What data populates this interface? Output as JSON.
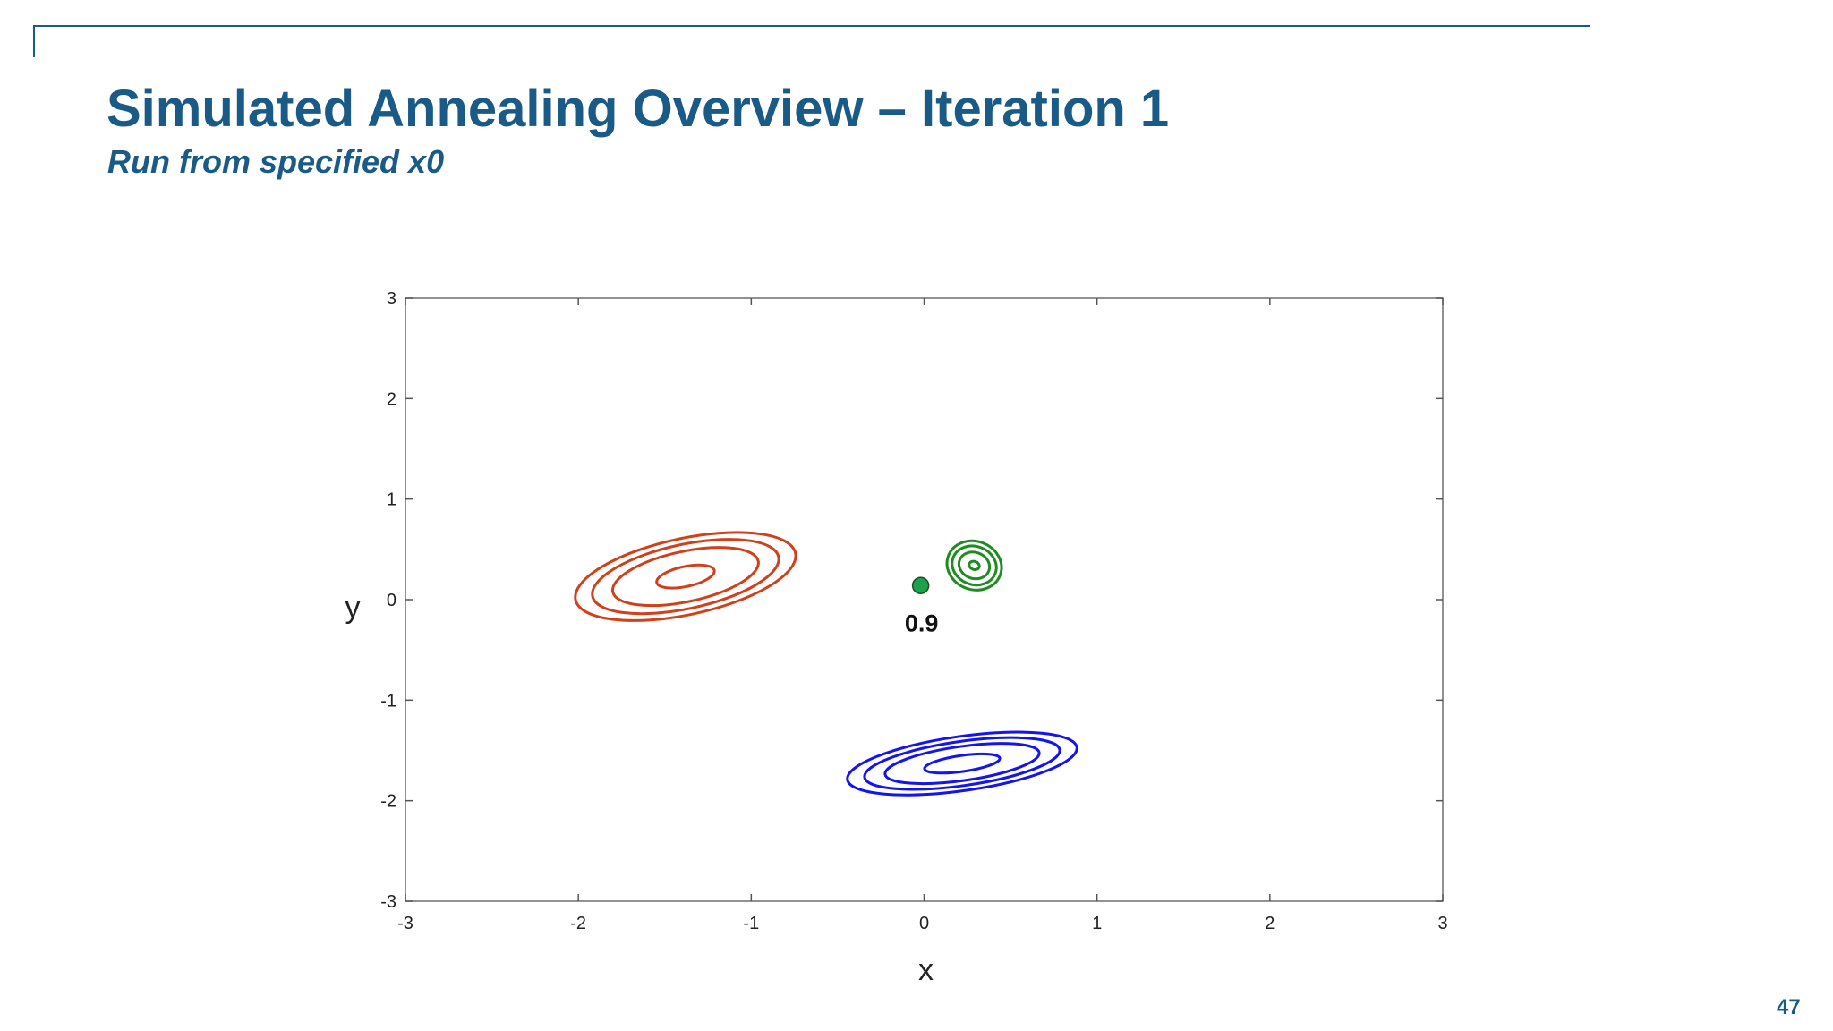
{
  "slide": {
    "title": "Simulated Annealing Overview – Iteration 1",
    "subtitle": "Run from specified x0",
    "page_number": "47",
    "accent_color": "#1a5a87"
  },
  "chart_data": {
    "type": "contour",
    "title": "",
    "xlabel": "x",
    "ylabel": "y",
    "xlim": [
      -3,
      3
    ],
    "ylim": [
      -3,
      3
    ],
    "x_ticks": [
      -3,
      -2,
      -1,
      0,
      1,
      2,
      3
    ],
    "y_ticks": [
      -3,
      -2,
      -1,
      0,
      1,
      2,
      3
    ],
    "grid": false,
    "contour_groups": [
      {
        "color": "#d0411b",
        "center": [
          -1.38,
          0.23
        ],
        "radius_x": [
          0.65,
          0.55,
          0.43,
          0.17
        ],
        "radius_y": [
          0.38,
          0.32,
          0.25,
          0.1
        ],
        "tilt_deg": 12
      },
      {
        "color": "#1f8c1f",
        "center": [
          0.29,
          0.34
        ],
        "radius_x": [
          0.16,
          0.13,
          0.09,
          0.03
        ],
        "radius_y": [
          0.24,
          0.19,
          0.13,
          0.04
        ],
        "tilt_deg": -20
      },
      {
        "color": "#1414ee",
        "center": [
          0.22,
          -1.63
        ],
        "radius_x": [
          0.67,
          0.57,
          0.45,
          0.22
        ],
        "radius_y": [
          0.27,
          0.22,
          0.17,
          0.08
        ],
        "tilt_deg": 8
      }
    ],
    "point": {
      "x": -0.02,
      "y": 0.14,
      "color": "#1aa34a",
      "label": "0.9"
    }
  }
}
